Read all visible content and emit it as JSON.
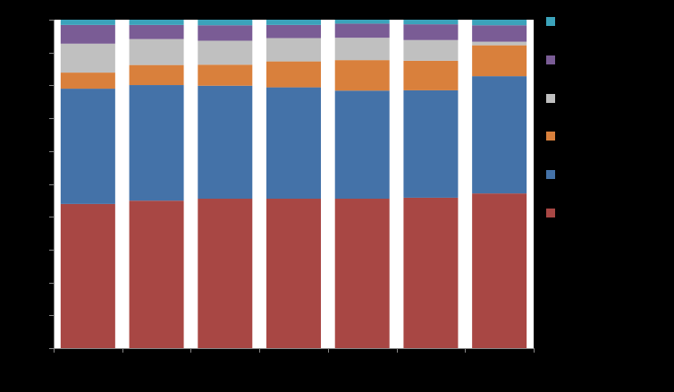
{
  "chart_data": {
    "type": "bar",
    "stacked": true,
    "normalized": true,
    "categories": [
      "",
      "",
      "",
      "",
      "",
      "",
      ""
    ],
    "ylim": [
      0,
      1
    ],
    "yticks": [
      0,
      0.1,
      0.2,
      0.3,
      0.4,
      0.5,
      0.6,
      0.7,
      0.8,
      0.9,
      1.0
    ],
    "grid": false,
    "legend_position": "right",
    "series": [
      {
        "name": "",
        "color": "#a84744",
        "values": [
          0.439,
          0.449,
          0.455,
          0.455,
          0.455,
          0.458,
          0.471
        ]
      },
      {
        "name": "",
        "color": "#4472a8",
        "values": [
          0.351,
          0.352,
          0.344,
          0.339,
          0.329,
          0.327,
          0.357
        ]
      },
      {
        "name": "",
        "color": "#d9803c",
        "values": [
          0.049,
          0.061,
          0.064,
          0.079,
          0.093,
          0.09,
          0.094
        ]
      },
      {
        "name": "",
        "color": "#c0c0c0",
        "values": [
          0.088,
          0.079,
          0.073,
          0.071,
          0.068,
          0.063,
          0.011
        ]
      },
      {
        "name": "",
        "color": "#7a5c95",
        "values": [
          0.057,
          0.043,
          0.047,
          0.04,
          0.043,
          0.048,
          0.05
        ]
      },
      {
        "name": "",
        "color": "#3ba3bb",
        "values": [
          0.016,
          0.016,
          0.017,
          0.016,
          0.012,
          0.014,
          0.017
        ]
      }
    ],
    "legend_order": [
      5,
      4,
      3,
      2,
      1,
      0
    ]
  }
}
